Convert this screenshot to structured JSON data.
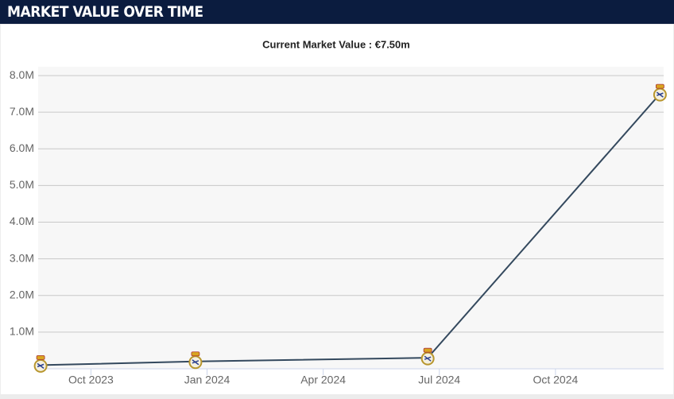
{
  "header": {
    "title": "MARKET VALUE OVER TIME"
  },
  "chart_data": {
    "type": "line",
    "subtitle": "Current Market Value : €7.50m",
    "x": [
      "2023-08",
      "2023-12",
      "2024-06",
      "2024-12"
    ],
    "values": [
      100000,
      200000,
      300000,
      7500000
    ],
    "color": "#34495e",
    "xlim": [
      "2023-08",
      "2024-12"
    ],
    "xticks": [
      {
        "value": "2023-10",
        "label": "Oct 2023"
      },
      {
        "value": "2024-01",
        "label": "Jan 2024"
      },
      {
        "value": "2024-04",
        "label": "Apr 2024"
      },
      {
        "value": "2024-07",
        "label": "Jul 2024"
      },
      {
        "value": "2024-10",
        "label": "Oct 2024"
      }
    ],
    "ylim": [
      0,
      8240000
    ],
    "yticks": [
      {
        "value": 1000000,
        "label": "1.0M"
      },
      {
        "value": 2000000,
        "label": "2.0M"
      },
      {
        "value": 3000000,
        "label": "3.0M"
      },
      {
        "value": 4000000,
        "label": "4.0M"
      },
      {
        "value": 5000000,
        "label": "5.0M"
      },
      {
        "value": 6000000,
        "label": "6.0M"
      },
      {
        "value": 7000000,
        "label": "7.0M"
      },
      {
        "value": 8000000,
        "label": "8.0M"
      }
    ],
    "grid": true
  }
}
